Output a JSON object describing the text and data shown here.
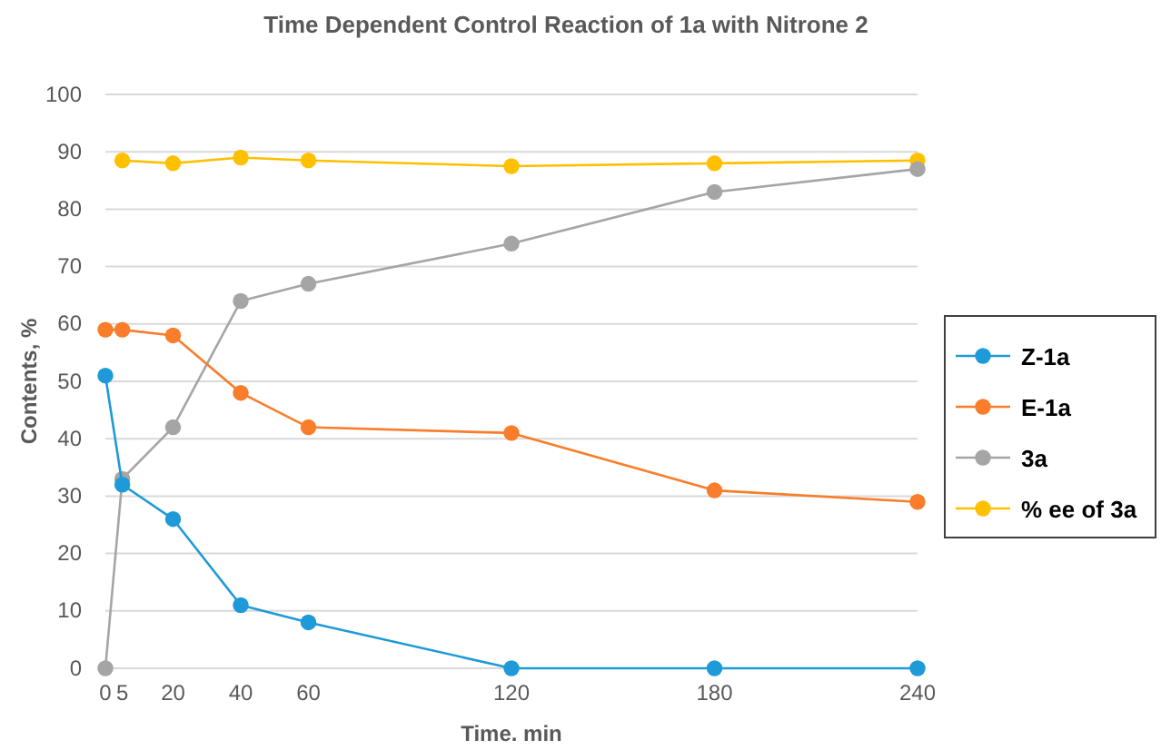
{
  "chart_data": {
    "type": "line",
    "title": "Time Dependent Control Reaction of 1a with Nitrone 2",
    "xlabel": "Time. min",
    "ylabel": "Contents, %",
    "x": [
      0,
      5,
      20,
      40,
      60,
      120,
      180,
      240
    ],
    "series": [
      {
        "name": "Z-1a",
        "color": "#1f9ad8",
        "values": [
          51,
          32,
          26,
          11,
          8,
          0,
          0,
          0
        ]
      },
      {
        "name": "E-1a",
        "color": "#f97d2a",
        "values": [
          59,
          59,
          58,
          48,
          42,
          41,
          31,
          29
        ]
      },
      {
        "name": "3a",
        "color": "#a5a5a5",
        "values": [
          0,
          33,
          42,
          64,
          67,
          74,
          83,
          87
        ]
      },
      {
        "name": "% ee of 3a",
        "color": "#ffc000",
        "values": [
          null,
          88.5,
          88,
          89,
          88.5,
          87.5,
          88,
          88.5
        ]
      }
    ],
    "xlim": [
      0,
      240
    ],
    "xticks": [
      0,
      5,
      20,
      40,
      60,
      120,
      180,
      240
    ],
    "ylim": [
      0,
      100
    ],
    "yticks": [
      0,
      10,
      20,
      30,
      40,
      50,
      60,
      70,
      80,
      90,
      100
    ],
    "grid": "y",
    "legend": "right",
    "marker": "circle",
    "line_style": "solid"
  }
}
